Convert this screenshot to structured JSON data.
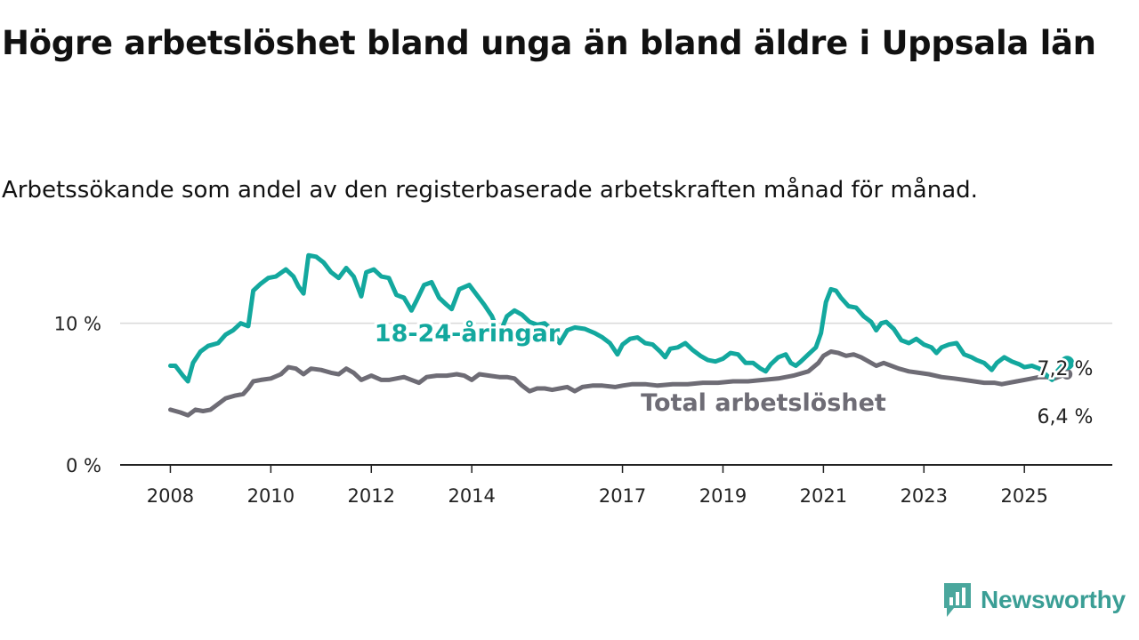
{
  "title": "Högre arbetslöshet bland unga än bland äldre i Uppsala län",
  "subtitle": "Arbetssökande som andel av den registerbaserade arbetskraften månad för månad.",
  "brand": {
    "name": "Newsworthy",
    "icon": "bar-chart-logo-icon",
    "color": "#4aa79d"
  },
  "colors": {
    "youth": "#13a89e",
    "total": "#6e6c75",
    "grid": "#d9d9d9",
    "axis": "#222222"
  },
  "chart_data": {
    "type": "line",
    "title": "Högre arbetslöshet bland unga än bland äldre i Uppsala län",
    "subtitle": "Arbetssökande som andel av den registerbaserade arbetskraften månad för månad.",
    "xlabel": "",
    "ylabel": "",
    "xlim": [
      2007.0,
      2026.75
    ],
    "ylim": [
      0,
      15
    ],
    "grid": true,
    "y_ticks": [
      {
        "value": 0,
        "label": "0 %"
      },
      {
        "value": 10,
        "label": "10 %"
      }
    ],
    "x_ticks": [
      {
        "value": 2008,
        "label": "2008"
      },
      {
        "value": 2010,
        "label": "2010"
      },
      {
        "value": 2012,
        "label": "2012"
      },
      {
        "value": 2014,
        "label": "2014"
      },
      {
        "value": 2017,
        "label": "2017"
      },
      {
        "value": 2019,
        "label": "2019"
      },
      {
        "value": 2021,
        "label": "2021"
      },
      {
        "value": 2023,
        "label": "2023"
      },
      {
        "value": 2025,
        "label": "2025"
      }
    ],
    "series": [
      {
        "name": "18-24-åringar",
        "color": "#13a89e",
        "end_label": "7,2 %",
        "points": [
          [
            2008.0,
            7.0
          ],
          [
            2008.1,
            7.0
          ],
          [
            2008.25,
            6.3
          ],
          [
            2008.35,
            5.9
          ],
          [
            2008.45,
            7.2
          ],
          [
            2008.6,
            8.0
          ],
          [
            2008.75,
            8.4
          ],
          [
            2008.95,
            8.6
          ],
          [
            2009.1,
            9.2
          ],
          [
            2009.25,
            9.5
          ],
          [
            2009.4,
            10.0
          ],
          [
            2009.55,
            9.8
          ],
          [
            2009.65,
            12.3
          ],
          [
            2009.8,
            12.8
          ],
          [
            2009.95,
            13.2
          ],
          [
            2010.1,
            13.3
          ],
          [
            2010.3,
            13.8
          ],
          [
            2010.45,
            13.3
          ],
          [
            2010.55,
            12.6
          ],
          [
            2010.65,
            12.1
          ],
          [
            2010.75,
            14.8
          ],
          [
            2010.9,
            14.7
          ],
          [
            2011.05,
            14.3
          ],
          [
            2011.2,
            13.6
          ],
          [
            2011.35,
            13.2
          ],
          [
            2011.5,
            13.9
          ],
          [
            2011.65,
            13.3
          ],
          [
            2011.8,
            11.9
          ],
          [
            2011.9,
            13.6
          ],
          [
            2012.05,
            13.8
          ],
          [
            2012.2,
            13.3
          ],
          [
            2012.35,
            13.2
          ],
          [
            2012.5,
            12.0
          ],
          [
            2012.65,
            11.8
          ],
          [
            2012.8,
            10.9
          ],
          [
            2012.9,
            11.6
          ],
          [
            2013.05,
            12.7
          ],
          [
            2013.2,
            12.9
          ],
          [
            2013.35,
            11.8
          ],
          [
            2013.5,
            11.3
          ],
          [
            2013.6,
            11.0
          ],
          [
            2013.75,
            12.4
          ],
          [
            2013.95,
            12.7
          ],
          [
            2014.1,
            12.0
          ],
          [
            2014.25,
            11.3
          ],
          [
            2014.4,
            10.5
          ],
          [
            2014.55,
            9.2
          ],
          [
            2014.7,
            10.5
          ],
          [
            2014.85,
            10.9
          ],
          [
            2015.0,
            10.6
          ],
          [
            2015.15,
            10.1
          ],
          [
            2015.3,
            9.9
          ],
          [
            2015.45,
            10.0
          ],
          [
            2015.6,
            9.5
          ],
          [
            2015.75,
            8.6
          ],
          [
            2015.9,
            9.5
          ],
          [
            2016.05,
            9.7
          ],
          [
            2016.25,
            9.6
          ],
          [
            2016.45,
            9.3
          ],
          [
            2016.6,
            9.0
          ],
          [
            2016.75,
            8.6
          ],
          [
            2016.9,
            7.8
          ],
          [
            2017.0,
            8.5
          ],
          [
            2017.15,
            8.9
          ],
          [
            2017.3,
            9.0
          ],
          [
            2017.45,
            8.6
          ],
          [
            2017.6,
            8.5
          ],
          [
            2017.75,
            8.0
          ],
          [
            2017.85,
            7.6
          ],
          [
            2017.95,
            8.2
          ],
          [
            2018.1,
            8.3
          ],
          [
            2018.25,
            8.6
          ],
          [
            2018.4,
            8.1
          ],
          [
            2018.55,
            7.7
          ],
          [
            2018.7,
            7.4
          ],
          [
            2018.85,
            7.3
          ],
          [
            2019.0,
            7.5
          ],
          [
            2019.15,
            7.9
          ],
          [
            2019.3,
            7.8
          ],
          [
            2019.45,
            7.2
          ],
          [
            2019.6,
            7.2
          ],
          [
            2019.75,
            6.8
          ],
          [
            2019.85,
            6.6
          ],
          [
            2019.95,
            7.1
          ],
          [
            2020.1,
            7.6
          ],
          [
            2020.25,
            7.8
          ],
          [
            2020.35,
            7.2
          ],
          [
            2020.45,
            7.0
          ],
          [
            2020.55,
            7.3
          ],
          [
            2020.7,
            7.8
          ],
          [
            2020.85,
            8.3
          ],
          [
            2020.95,
            9.3
          ],
          [
            2021.05,
            11.5
          ],
          [
            2021.15,
            12.4
          ],
          [
            2021.25,
            12.3
          ],
          [
            2021.35,
            11.8
          ],
          [
            2021.5,
            11.2
          ],
          [
            2021.65,
            11.1
          ],
          [
            2021.8,
            10.5
          ],
          [
            2021.95,
            10.1
          ],
          [
            2022.05,
            9.5
          ],
          [
            2022.15,
            10.0
          ],
          [
            2022.25,
            10.1
          ],
          [
            2022.4,
            9.6
          ],
          [
            2022.55,
            8.8
          ],
          [
            2022.7,
            8.6
          ],
          [
            2022.85,
            8.9
          ],
          [
            2023.0,
            8.5
          ],
          [
            2023.15,
            8.3
          ],
          [
            2023.25,
            7.9
          ],
          [
            2023.35,
            8.3
          ],
          [
            2023.5,
            8.5
          ],
          [
            2023.65,
            8.6
          ],
          [
            2023.8,
            7.8
          ],
          [
            2023.95,
            7.6
          ],
          [
            2024.05,
            7.4
          ],
          [
            2024.2,
            7.2
          ],
          [
            2024.35,
            6.7
          ],
          [
            2024.45,
            7.2
          ],
          [
            2024.6,
            7.6
          ],
          [
            2024.75,
            7.3
          ],
          [
            2024.9,
            7.1
          ],
          [
            2025.0,
            6.9
          ],
          [
            2025.15,
            7.0
          ],
          [
            2025.3,
            6.8
          ],
          [
            2025.45,
            6.3
          ],
          [
            2025.55,
            6.0
          ],
          [
            2025.65,
            6.6
          ],
          [
            2025.75,
            7.0
          ],
          [
            2025.85,
            7.2
          ]
        ]
      },
      {
        "name": "Total arbetslöshet",
        "color": "#6e6c75",
        "end_label": "6,4 %",
        "points": [
          [
            2008.0,
            3.9
          ],
          [
            2008.2,
            3.7
          ],
          [
            2008.35,
            3.5
          ],
          [
            2008.5,
            3.9
          ],
          [
            2008.65,
            3.8
          ],
          [
            2008.8,
            3.9
          ],
          [
            2008.95,
            4.3
          ],
          [
            2009.1,
            4.7
          ],
          [
            2009.3,
            4.9
          ],
          [
            2009.45,
            5.0
          ],
          [
            2009.55,
            5.4
          ],
          [
            2009.65,
            5.9
          ],
          [
            2009.8,
            6.0
          ],
          [
            2010.0,
            6.1
          ],
          [
            2010.2,
            6.4
          ],
          [
            2010.35,
            6.9
          ],
          [
            2010.5,
            6.8
          ],
          [
            2010.65,
            6.4
          ],
          [
            2010.8,
            6.8
          ],
          [
            2011.0,
            6.7
          ],
          [
            2011.2,
            6.5
          ],
          [
            2011.35,
            6.4
          ],
          [
            2011.5,
            6.8
          ],
          [
            2011.65,
            6.5
          ],
          [
            2011.8,
            6.0
          ],
          [
            2012.0,
            6.3
          ],
          [
            2012.2,
            6.0
          ],
          [
            2012.35,
            6.0
          ],
          [
            2012.5,
            6.1
          ],
          [
            2012.65,
            6.2
          ],
          [
            2012.8,
            6.0
          ],
          [
            2012.95,
            5.8
          ],
          [
            2013.1,
            6.2
          ],
          [
            2013.3,
            6.3
          ],
          [
            2013.5,
            6.3
          ],
          [
            2013.7,
            6.4
          ],
          [
            2013.85,
            6.3
          ],
          [
            2014.0,
            6.0
          ],
          [
            2014.15,
            6.4
          ],
          [
            2014.35,
            6.3
          ],
          [
            2014.55,
            6.2
          ],
          [
            2014.7,
            6.2
          ],
          [
            2014.85,
            6.1
          ],
          [
            2015.0,
            5.6
          ],
          [
            2015.15,
            5.2
          ],
          [
            2015.3,
            5.4
          ],
          [
            2015.45,
            5.4
          ],
          [
            2015.6,
            5.3
          ],
          [
            2015.75,
            5.4
          ],
          [
            2015.9,
            5.5
          ],
          [
            2016.05,
            5.2
          ],
          [
            2016.2,
            5.5
          ],
          [
            2016.4,
            5.6
          ],
          [
            2016.6,
            5.6
          ],
          [
            2016.85,
            5.5
          ],
          [
            2017.0,
            5.6
          ],
          [
            2017.2,
            5.7
          ],
          [
            2017.45,
            5.7
          ],
          [
            2017.7,
            5.6
          ],
          [
            2018.0,
            5.7
          ],
          [
            2018.3,
            5.7
          ],
          [
            2018.6,
            5.8
          ],
          [
            2018.9,
            5.8
          ],
          [
            2019.2,
            5.9
          ],
          [
            2019.5,
            5.9
          ],
          [
            2019.8,
            6.0
          ],
          [
            2020.1,
            6.1
          ],
          [
            2020.4,
            6.3
          ],
          [
            2020.7,
            6.6
          ],
          [
            2020.9,
            7.2
          ],
          [
            2021.0,
            7.7
          ],
          [
            2021.15,
            8.0
          ],
          [
            2021.3,
            7.9
          ],
          [
            2021.45,
            7.7
          ],
          [
            2021.6,
            7.8
          ],
          [
            2021.75,
            7.6
          ],
          [
            2021.9,
            7.3
          ],
          [
            2022.05,
            7.0
          ],
          [
            2022.2,
            7.2
          ],
          [
            2022.35,
            7.0
          ],
          [
            2022.5,
            6.8
          ],
          [
            2022.7,
            6.6
          ],
          [
            2022.9,
            6.5
          ],
          [
            2023.1,
            6.4
          ],
          [
            2023.35,
            6.2
          ],
          [
            2023.6,
            6.1
          ],
          [
            2023.8,
            6.0
          ],
          [
            2024.0,
            5.9
          ],
          [
            2024.2,
            5.8
          ],
          [
            2024.4,
            5.8
          ],
          [
            2024.55,
            5.7
          ],
          [
            2024.7,
            5.8
          ],
          [
            2024.85,
            5.9
          ],
          [
            2025.0,
            6.0
          ],
          [
            2025.15,
            6.1
          ],
          [
            2025.3,
            6.2
          ],
          [
            2025.45,
            6.2
          ],
          [
            2025.6,
            6.1
          ],
          [
            2025.75,
            6.3
          ],
          [
            2025.85,
            6.4
          ]
        ]
      }
    ]
  }
}
